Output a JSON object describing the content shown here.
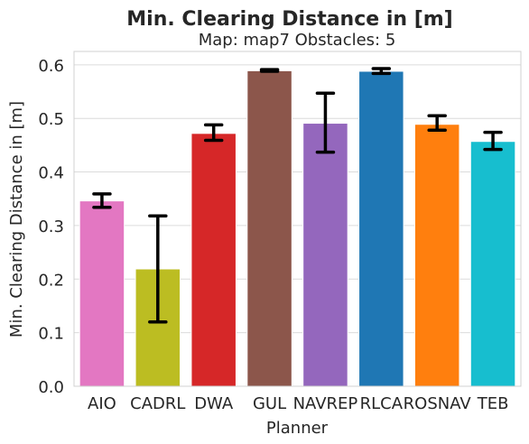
{
  "chart_data": {
    "type": "bar",
    "title": "Min. Clearing Distance in [m]",
    "subtitle": "Map: map7 Obstacles: 5",
    "xlabel": "Planner",
    "ylabel": "Min. Clearing Distance in [m]",
    "ylim": [
      0,
      0.625
    ],
    "yticks": [
      "0.0",
      "0.1",
      "0.2",
      "0.3",
      "0.4",
      "0.5",
      "0.6"
    ],
    "grid": true,
    "categories": [
      "AIO",
      "CADRL",
      "DWA",
      "GUL",
      "NAVREP",
      "RLCA",
      "ROSNAV",
      "TEB"
    ],
    "values": [
      0.346,
      0.219,
      0.472,
      0.589,
      0.491,
      0.588,
      0.489,
      0.457
    ],
    "error_low": [
      0.334,
      0.12,
      0.459,
      0.588,
      0.437,
      0.584,
      0.478,
      0.442
    ],
    "error_high": [
      0.359,
      0.318,
      0.488,
      0.591,
      0.547,
      0.593,
      0.505,
      0.474
    ],
    "colors": [
      "#e377c2",
      "#bcbd22",
      "#d62728",
      "#8c564b",
      "#9467bd",
      "#1f77b4",
      "#ff7f0e",
      "#17becf"
    ]
  }
}
